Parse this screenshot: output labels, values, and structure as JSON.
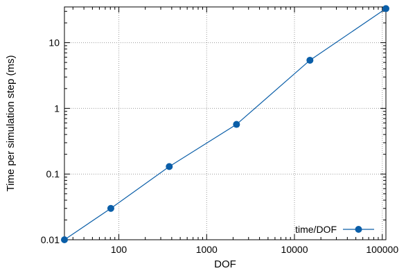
{
  "chart_data": {
    "type": "line",
    "title": "",
    "xlabel": "DOF",
    "ylabel": "Time per simulation step (ms)",
    "xscale": "log",
    "yscale": "log",
    "xlim": [
      24,
      110000
    ],
    "ylim": [
      0.01,
      35
    ],
    "xticks": [
      {
        "value": 100,
        "label": "100"
      },
      {
        "value": 1000,
        "label": "1000"
      },
      {
        "value": 10000,
        "label": "10000"
      },
      {
        "value": 100000,
        "label": "100000"
      }
    ],
    "yticks": [
      {
        "value": 0.01,
        "label": "0.01"
      },
      {
        "value": 0.1,
        "label": "0.1"
      },
      {
        "value": 1,
        "label": "1"
      },
      {
        "value": 10,
        "label": "10"
      }
    ],
    "grid": true,
    "legend_position": "bottom-right",
    "series": [
      {
        "name": "time/DOF",
        "color": "#0a5ea8",
        "x": [
          24,
          81,
          375,
          2187,
          15000,
          110000
        ],
        "y": [
          0.01,
          0.03,
          0.13,
          0.57,
          5.4,
          33
        ]
      }
    ]
  }
}
